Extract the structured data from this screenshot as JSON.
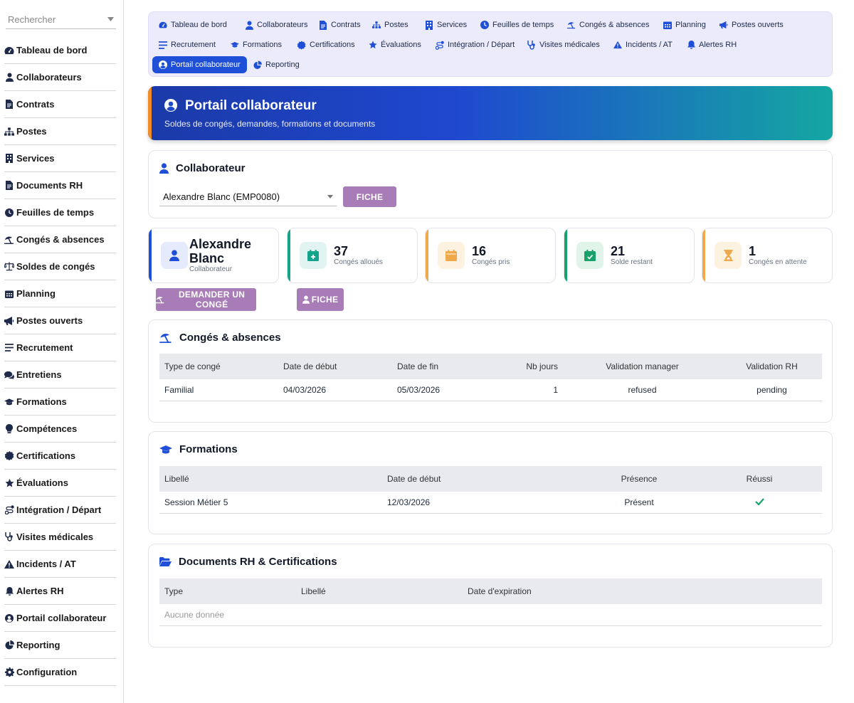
{
  "search": {
    "placeholder": "Rechercher"
  },
  "sidebar": {
    "items": [
      {
        "label": "Tableau de bord",
        "icon": "dashboard-icon"
      },
      {
        "label": "Collaborateurs",
        "icon": "user-icon"
      },
      {
        "label": "Contrats",
        "icon": "contract-icon"
      },
      {
        "label": "Postes",
        "icon": "org-chart-icon"
      },
      {
        "label": "Services",
        "icon": "building-icon"
      },
      {
        "label": "Documents RH",
        "icon": "document-icon"
      },
      {
        "label": "Feuilles de temps",
        "icon": "clock-icon"
      },
      {
        "label": "Congés & absences",
        "icon": "umbrella-beach-icon"
      },
      {
        "label": "Soldes de congés",
        "icon": "scale-icon"
      },
      {
        "label": "Planning",
        "icon": "calendar-icon"
      },
      {
        "label": "Postes ouverts",
        "icon": "megaphone-icon"
      },
      {
        "label": "Recrutement",
        "icon": "list-icon"
      },
      {
        "label": "Entretiens",
        "icon": "comments-icon"
      },
      {
        "label": "Formations",
        "icon": "graduation-cap-icon"
      },
      {
        "label": "Compétences",
        "icon": "lightbulb-icon"
      },
      {
        "label": "Certifications",
        "icon": "certificate-icon"
      },
      {
        "label": "Évaluations",
        "icon": "star-icon"
      },
      {
        "label": "Intégration / Départ",
        "icon": "route-icon"
      },
      {
        "label": "Visites médicales",
        "icon": "stethoscope-icon"
      },
      {
        "label": "Incidents / AT",
        "icon": "warning-icon"
      },
      {
        "label": "Alertes RH",
        "icon": "bell-icon"
      },
      {
        "label": "Portail collaborateur",
        "icon": "user-circle-icon"
      },
      {
        "label": "Reporting",
        "icon": "pie-chart-icon"
      },
      {
        "label": "Configuration",
        "icon": "gear-icon"
      }
    ]
  },
  "tabs": [
    {
      "label": "Tableau de bord",
      "icon": "dashboard-icon"
    },
    {
      "label": "Collaborateurs",
      "icon": "user-icon"
    },
    {
      "label": "Contrats",
      "icon": "contract-icon"
    },
    {
      "label": "Postes",
      "icon": "org-chart-icon"
    },
    {
      "label": "Services",
      "icon": "building-icon"
    },
    {
      "label": "Feuilles de temps",
      "icon": "clock-icon"
    },
    {
      "label": "Congés & absences",
      "icon": "umbrella-beach-icon"
    },
    {
      "label": "Planning",
      "icon": "calendar-icon"
    },
    {
      "label": "Postes ouverts",
      "icon": "megaphone-icon"
    },
    {
      "label": "Recrutement",
      "icon": "list-icon"
    },
    {
      "label": "Formations",
      "icon": "graduation-cap-icon"
    },
    {
      "label": "Certifications",
      "icon": "certificate-icon"
    },
    {
      "label": "Évaluations",
      "icon": "star-icon"
    },
    {
      "label": "Intégration / Départ",
      "icon": "route-icon"
    },
    {
      "label": "Visites médicales",
      "icon": "stethoscope-icon"
    },
    {
      "label": "Incidents / AT",
      "icon": "warning-icon"
    },
    {
      "label": "Alertes RH",
      "icon": "bell-icon"
    },
    {
      "label": "Portail collaborateur",
      "icon": "user-circle-icon",
      "active": true
    },
    {
      "label": "Reporting",
      "icon": "pie-chart-icon"
    }
  ],
  "hero": {
    "title": "Portail collaborateur",
    "subtitle": "Soldes de congés, demandes, formations et documents"
  },
  "collaborator": {
    "title": "Collaborateur",
    "selected": "Alexandre Blanc (EMP0080)",
    "button": "FICHE"
  },
  "profile": {
    "first_name": "Alexandre",
    "last_name": "Blanc",
    "role": "Collaborateur"
  },
  "stats": [
    {
      "value": "37",
      "label": "Congés alloués",
      "color": "#14a38b",
      "icon": "calendar-plus-icon"
    },
    {
      "value": "16",
      "label": "Congés pris",
      "color": "#f0a94a",
      "icon": "calendar-icon"
    },
    {
      "value": "21",
      "label": "Solde restant",
      "color": "#19a16a",
      "icon": "calendar-check-icon"
    },
    {
      "value": "1",
      "label": "Congés en attente",
      "color": "#f0a94a",
      "icon": "hourglass-icon"
    }
  ],
  "actions": {
    "request_leave": "DEMANDER UN CONGÉ",
    "fiche": "FICHE"
  },
  "leaves": {
    "title": "Congés & absences",
    "columns": [
      "Type de congé",
      "Date de début",
      "Date de fin",
      "Nb jours",
      "Validation manager",
      "Validation RH"
    ],
    "rows": [
      [
        "Familial",
        "04/03/2026",
        "05/03/2026",
        "1",
        "refused",
        "pending"
      ]
    ]
  },
  "trainings": {
    "title": "Formations",
    "columns": [
      "Libellé",
      "Date de début",
      "Présence",
      "Réussi"
    ],
    "rows": [
      [
        "Session Métier 5",
        "12/03/2026",
        "Présent",
        "check"
      ]
    ]
  },
  "documents": {
    "title": "Documents RH & Certifications",
    "columns": [
      "Type",
      "Libellé",
      "Date d'expiration"
    ],
    "empty": "Aucune donnée"
  },
  "colors": {
    "accent": "#1f4fd6",
    "purple_button": "#a87cb6",
    "success": "#19a16a"
  }
}
